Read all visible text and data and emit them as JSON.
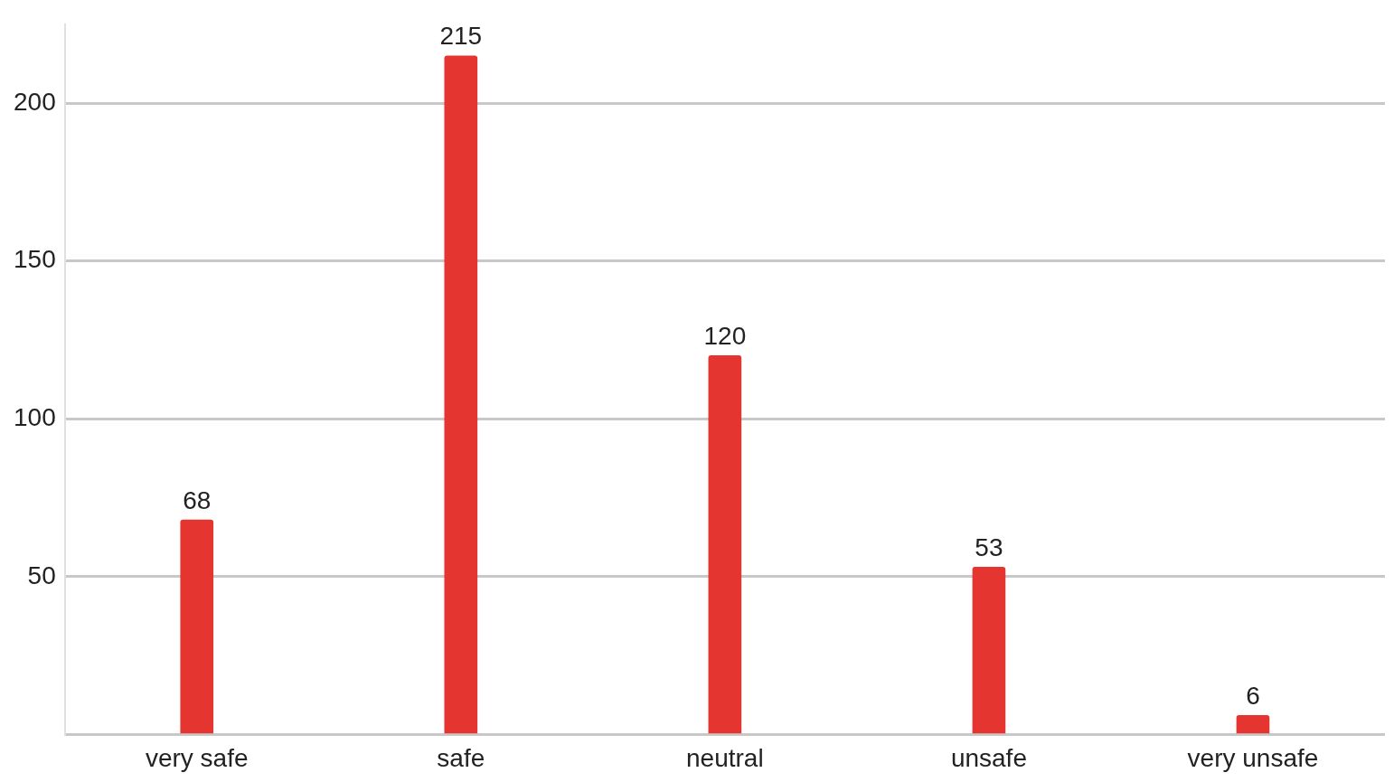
{
  "chart_data": {
    "type": "bar",
    "categories": [
      "very safe",
      "safe",
      "neutral",
      "unsafe",
      "very unsafe"
    ],
    "values": [
      68,
      215,
      120,
      53,
      6
    ],
    "color": "#e53530",
    "ylim": [
      0,
      225
    ],
    "yticks": [
      {
        "value": 0,
        "label": null
      },
      50,
      100,
      150,
      200
    ],
    "grid": "y",
    "data_labels": true
  }
}
